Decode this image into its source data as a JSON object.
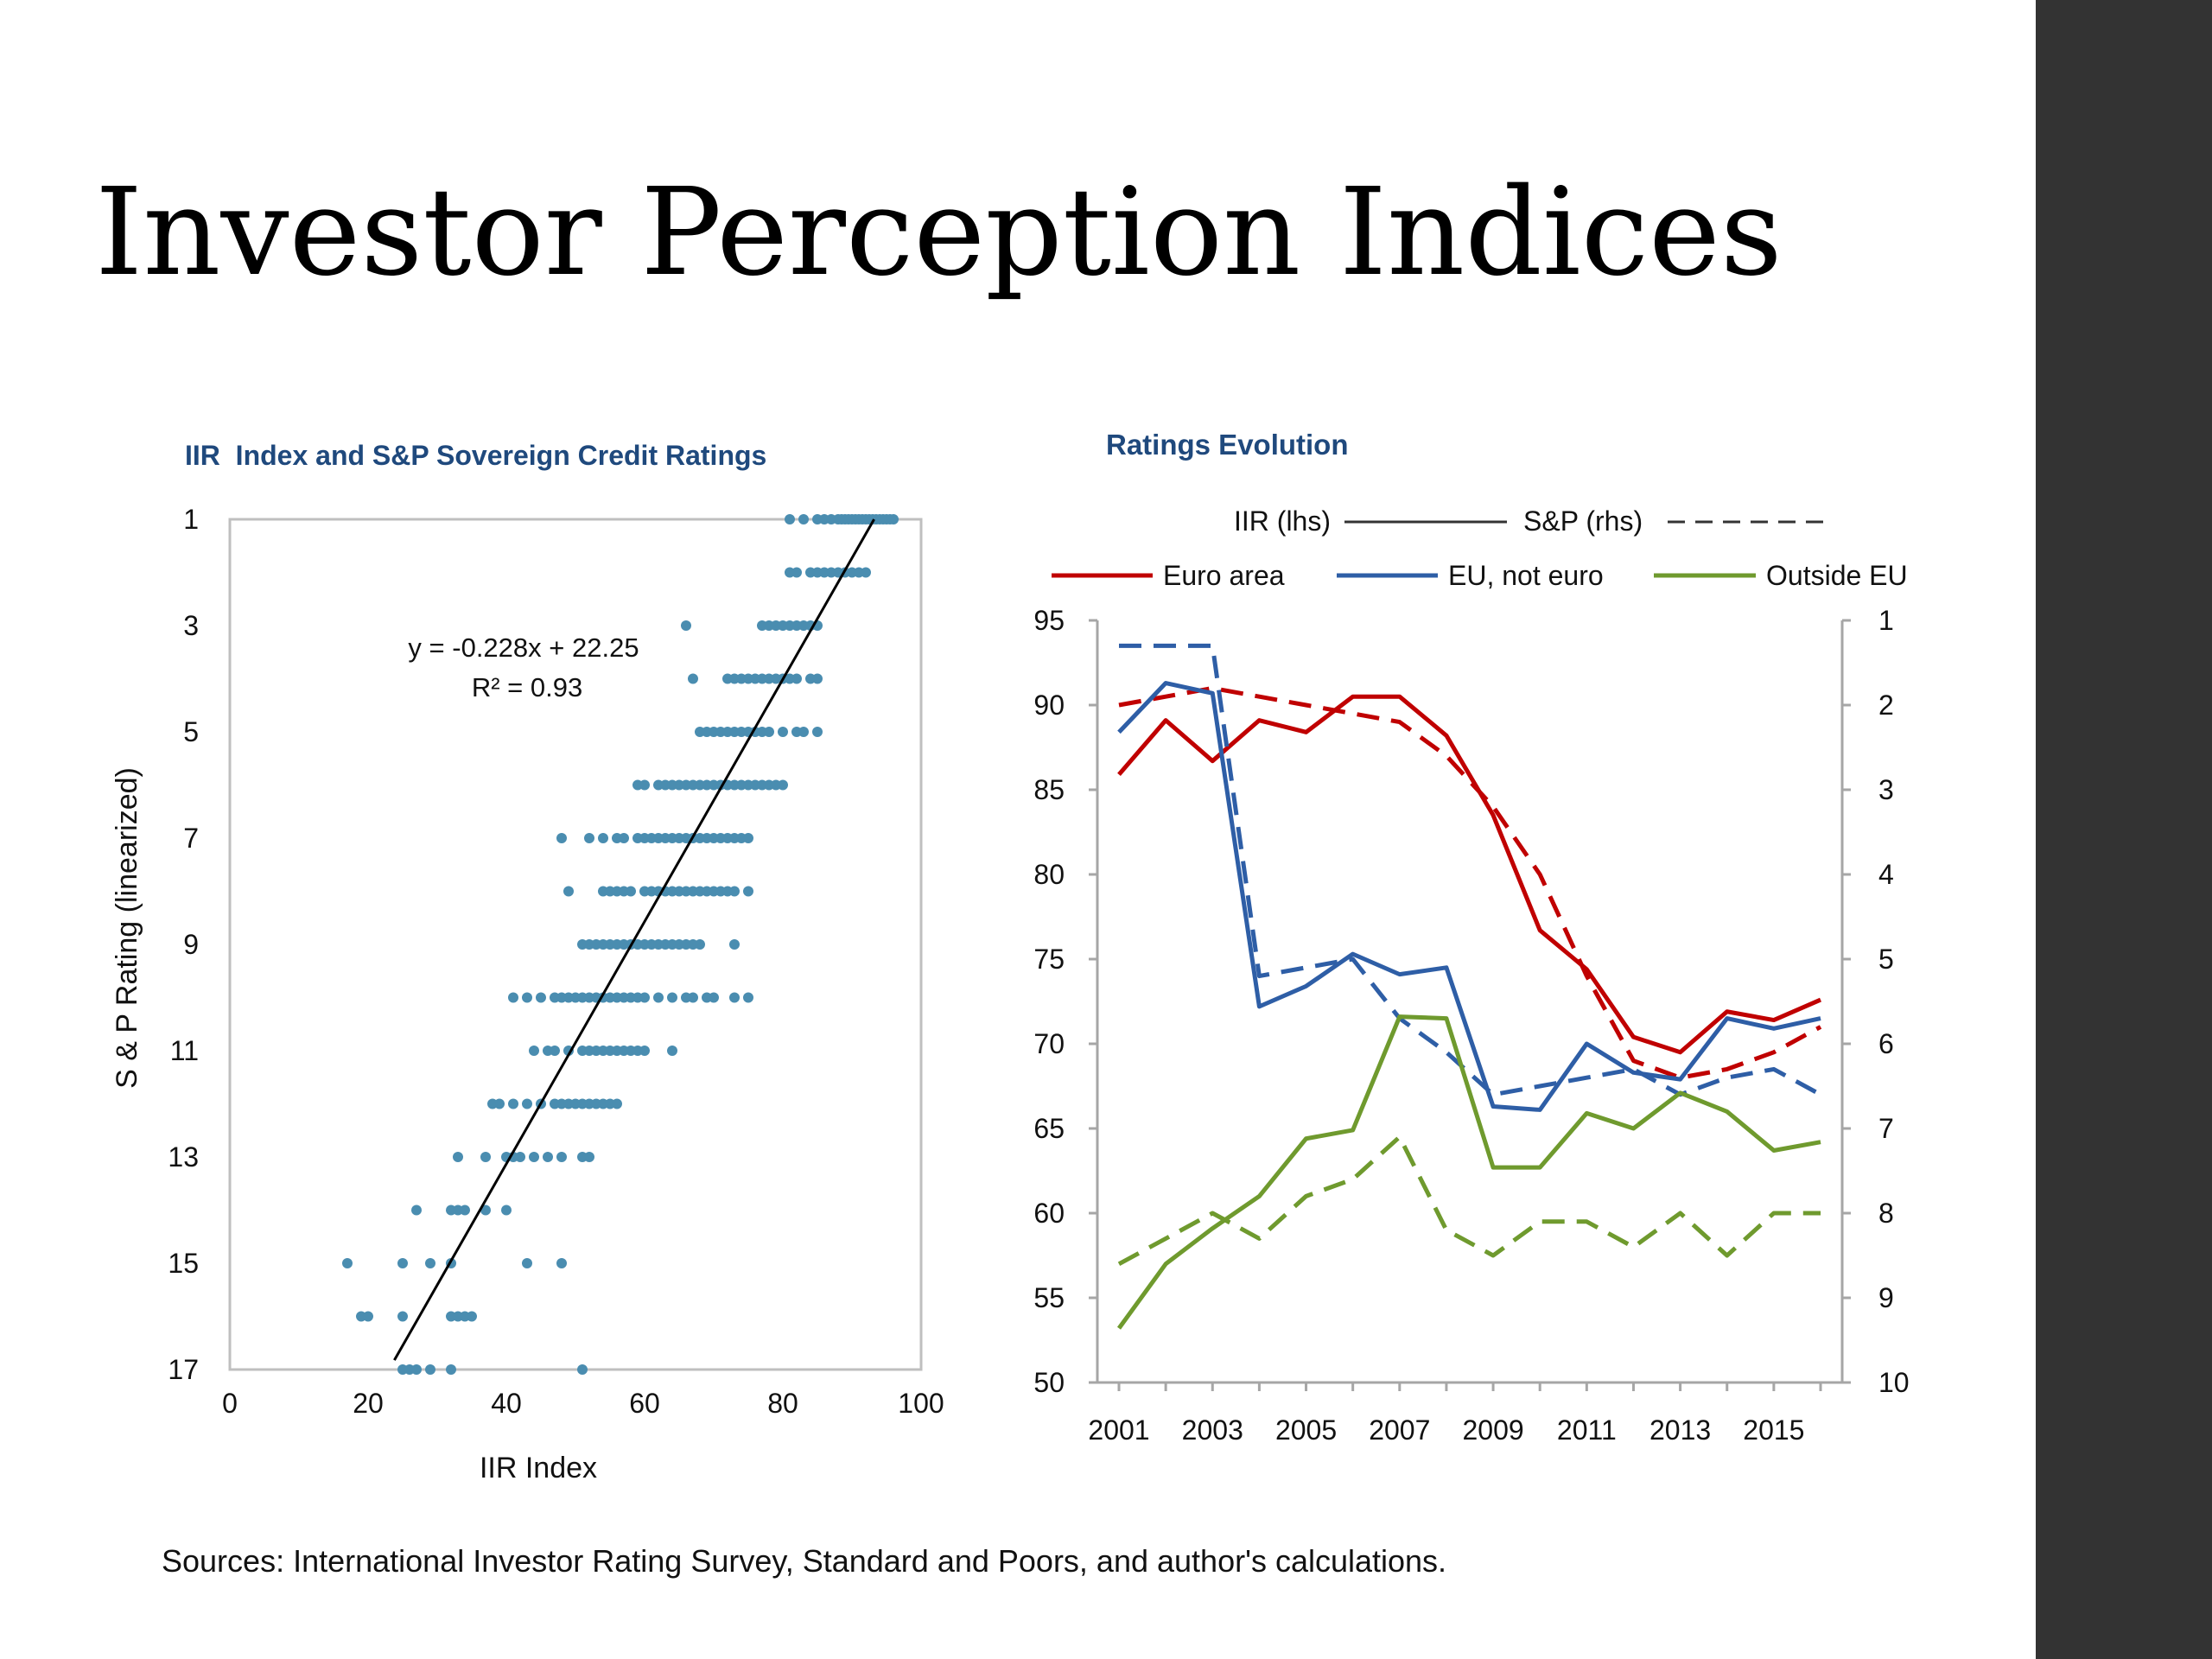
{
  "slide": {
    "title": "Investor Perception Indices",
    "sources": "Sources: International Investor Rating Survey, Standard and Poors, and author's calculations."
  },
  "colors": {
    "title_blue": "#1f497d",
    "scatter_point": "#4a8db0",
    "euro_area": "#c00000",
    "eu_not_euro": "#2e5ea6",
    "outside_eu": "#6f9a2e",
    "sidebar": "#333333"
  },
  "chart_data": [
    {
      "type": "scatter",
      "title": "IIR  Index and S&P Sovereign Credit Ratings",
      "xlabel": "IIR Index",
      "ylabel": "S & P Rating (linearized)",
      "xlim": [
        0,
        100
      ],
      "ylim": [
        1,
        17
      ],
      "y_reversed": true,
      "xticks": [
        0,
        20,
        40,
        60,
        80,
        100
      ],
      "yticks": [
        1,
        3,
        5,
        7,
        9,
        11,
        13,
        15,
        17
      ],
      "equation": "y = -0.228x + 22.25",
      "r2_label": "R² = 0.93",
      "trendline": {
        "slope": -0.228,
        "intercept": 22.25,
        "x_from": 23.8,
        "x_to": 93.2
      },
      "rating_groups": [
        {
          "y": 1,
          "x": [
            81,
            83,
            85,
            86,
            87,
            88,
            88.5,
            89,
            89.5,
            90,
            90.5,
            91,
            91.5,
            92,
            92.5,
            93,
            93.5,
            94,
            94.5,
            95,
            95.5,
            96
          ]
        },
        {
          "y": 2,
          "x": [
            81,
            82,
            84,
            85,
            86,
            87,
            88,
            89,
            90,
            91,
            92
          ]
        },
        {
          "y": 3,
          "x": [
            66,
            77,
            78,
            79,
            80,
            81,
            82,
            83,
            84,
            85
          ]
        },
        {
          "y": 4,
          "x": [
            67,
            72,
            73,
            74,
            75,
            76,
            77,
            78,
            79,
            80,
            81,
            82,
            84,
            85
          ]
        },
        {
          "y": 5,
          "x": [
            68,
            69,
            70,
            71,
            72,
            73,
            74,
            75,
            76,
            77,
            78,
            80,
            82,
            83,
            85
          ]
        },
        {
          "y": 6,
          "x": [
            59,
            60,
            62,
            63,
            64,
            65,
            66,
            67,
            68,
            69,
            70,
            71,
            72,
            73,
            74,
            75,
            76,
            77,
            78,
            79,
            80
          ]
        },
        {
          "y": 7,
          "x": [
            48,
            52,
            54,
            56,
            57,
            59,
            60,
            61,
            62,
            63,
            64,
            65,
            66,
            67,
            68,
            69,
            70,
            71,
            72,
            73,
            74,
            75
          ]
        },
        {
          "y": 8,
          "x": [
            49,
            54,
            55,
            56,
            57,
            58,
            60,
            61,
            62,
            63,
            64,
            65,
            66,
            67,
            68,
            69,
            70,
            71,
            72,
            73,
            75
          ]
        },
        {
          "y": 9,
          "x": [
            51,
            52,
            53,
            54,
            55,
            56,
            57,
            58,
            59,
            60,
            61,
            62,
            63,
            64,
            65,
            66,
            67,
            68,
            73
          ]
        },
        {
          "y": 10,
          "x": [
            41,
            43,
            45,
            47,
            48,
            49,
            50,
            51,
            52,
            53,
            54,
            55,
            56,
            57,
            58,
            59,
            60,
            62,
            64,
            66,
            67,
            69,
            70,
            73,
            75
          ]
        },
        {
          "y": 11,
          "x": [
            44,
            46,
            47,
            49,
            51,
            52,
            53,
            54,
            55,
            56,
            57,
            58,
            59,
            60,
            64
          ]
        },
        {
          "y": 12,
          "x": [
            38,
            39,
            41,
            43,
            45,
            47,
            48,
            49,
            50,
            51,
            52,
            53,
            54,
            55,
            56
          ]
        },
        {
          "y": 13,
          "x": [
            33,
            37,
            40,
            41,
            42,
            44,
            46,
            48,
            51,
            52
          ]
        },
        {
          "y": 14,
          "x": [
            27,
            32,
            33,
            34,
            37,
            40
          ]
        },
        {
          "y": 15,
          "x": [
            17,
            25,
            29,
            32,
            43,
            48
          ]
        },
        {
          "y": 16,
          "x": [
            19,
            20,
            25,
            32,
            33,
            34,
            35
          ]
        },
        {
          "y": 17,
          "x": [
            25,
            26,
            27,
            29,
            32,
            51
          ]
        }
      ]
    },
    {
      "type": "line",
      "title": "Ratings Evolution",
      "x": [
        2001,
        2002,
        2003,
        2004,
        2005,
        2006,
        2007,
        2008,
        2009,
        2010,
        2011,
        2012,
        2013,
        2014,
        2015,
        2016
      ],
      "xtick_labels": [
        "2001",
        "2003",
        "2005",
        "2007",
        "2009",
        "2011",
        "2013",
        "2015"
      ],
      "ylim_left": [
        50,
        95
      ],
      "yticks_left": [
        50,
        55,
        60,
        65,
        70,
        75,
        80,
        85,
        90,
        95
      ],
      "ylim_right": [
        1,
        10
      ],
      "y_right_reversed": true,
      "yticks_right": [
        1,
        2,
        3,
        4,
        5,
        6,
        7,
        8,
        9,
        10
      ],
      "style_legend": [
        {
          "label": "IIR (lhs)",
          "dash": "solid"
        },
        {
          "label": "S&P (rhs)",
          "dash": "dashed"
        }
      ],
      "series": [
        {
          "name": "Euro area",
          "color": "#c00000",
          "iir": [
            85.9,
            89.1,
            86.7,
            89.1,
            88.4,
            90.5,
            90.5,
            88.2,
            83.5,
            76.7,
            74.4,
            70.4,
            69.5,
            71.9,
            71.4,
            72.6
          ],
          "sp": [
            2.0,
            1.9,
            1.8,
            1.9,
            2.0,
            2.1,
            2.2,
            2.6,
            3.2,
            4.0,
            5.2,
            6.2,
            6.4,
            6.3,
            6.1,
            5.8
          ]
        },
        {
          "name": "EU, not euro",
          "color": "#2e5ea6",
          "iir": [
            88.4,
            91.3,
            90.7,
            72.2,
            73.4,
            75.3,
            74.1,
            74.5,
            66.3,
            66.1,
            70.0,
            68.3,
            67.9,
            71.5,
            70.9,
            71.5
          ],
          "sp": [
            1.3,
            1.3,
            1.3,
            5.2,
            5.1,
            5.0,
            5.7,
            6.1,
            6.6,
            6.5,
            6.4,
            6.3,
            6.6,
            6.4,
            6.3,
            6.6
          ]
        },
        {
          "name": "Outside EU",
          "color": "#6f9a2e",
          "iir": [
            53.2,
            57.0,
            59.1,
            61.0,
            64.4,
            64.9,
            71.6,
            71.5,
            62.7,
            62.7,
            65.9,
            65.0,
            67.1,
            66.0,
            63.7,
            64.2
          ],
          "sp": [
            8.6,
            8.3,
            8.0,
            8.3,
            7.8,
            7.6,
            7.1,
            8.2,
            8.5,
            8.1,
            8.1,
            8.4,
            8.0,
            8.5,
            8.0,
            8.0
          ]
        }
      ]
    }
  ]
}
